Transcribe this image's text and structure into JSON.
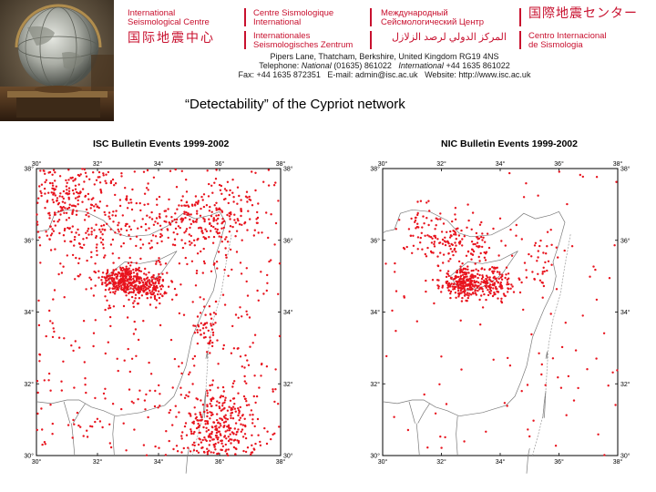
{
  "header": {
    "organization_en": [
      "International",
      "Seismological Centre"
    ],
    "organization_fr": [
      "Centre Sismologique",
      "International"
    ],
    "organization_ru": [
      "Международный",
      "Сейсмологический Центр"
    ],
    "organization_ja": "国際地震センター",
    "organization_zh": "国际地震中心",
    "organization_de": [
      "Internationales",
      "Seismologisches Zentrum"
    ],
    "organization_ar": "المركز الدولي لرصد الزلازل",
    "organization_es": [
      "Centro Internacional",
      "de Sismologia"
    ],
    "accent_color": "#c8102e"
  },
  "address": {
    "line1": "Pipers Lane, Thatcham, Berkshire, United Kingdom RG19 4NS",
    "telephone_label": "Telephone:",
    "national_label": "National",
    "telephone_national": "(01635) 861022",
    "international_label": "International",
    "telephone_international": "+44 1635 861022",
    "fax": "Fax: +44 1635 872351",
    "email": "E-mail: admin@isc.ac.uk",
    "website": "Website: http://www.isc.ac.uk"
  },
  "slide_title": "“Detectability” of the Cypriot network",
  "chart_data": [
    {
      "type": "scatter",
      "title": "ISC Bulletin Events 1999-2002",
      "x_ticks": [
        "30°",
        "32°",
        "34°",
        "36°",
        "38°"
      ],
      "y_ticks": [
        "30°",
        "32°",
        "34°",
        "36°",
        "38°"
      ],
      "xlim": [
        30,
        38
      ],
      "ylim": [
        30,
        38
      ],
      "point_color": "#e8141e",
      "clusters": [
        {
          "lon": 32.8,
          "lat": 34.9,
          "spread_lon": 0.35,
          "spread_lat": 0.2,
          "count": 260
        },
        {
          "lon": 33.6,
          "lat": 34.7,
          "spread_lon": 0.35,
          "spread_lat": 0.2,
          "count": 170
        },
        {
          "lon": 36.0,
          "lat": 30.7,
          "spread_lon": 0.6,
          "spread_lat": 0.6,
          "count": 320
        },
        {
          "lon": 34.8,
          "lat": 36.5,
          "spread_lon": 1.1,
          "spread_lat": 0.45,
          "count": 170
        },
        {
          "lon": 31.5,
          "lat": 36.8,
          "spread_lon": 1.1,
          "spread_lat": 0.8,
          "count": 220
        },
        {
          "lon": 35.6,
          "lat": 33.6,
          "spread_lon": 0.2,
          "spread_lat": 0.35,
          "count": 45
        },
        {
          "lon": 36.0,
          "lat": 36.8,
          "spread_lon": 0.6,
          "spread_lat": 0.7,
          "count": 90
        },
        {
          "lon": 30.8,
          "lat": 37.3,
          "spread_lon": 0.4,
          "spread_lat": 0.5,
          "count": 90
        }
      ],
      "background_events": 420
    },
    {
      "type": "scatter",
      "title": "NIC Bulletin Events 1999-2002",
      "x_ticks": [
        "30°",
        "32°",
        "34°",
        "36°",
        "38°"
      ],
      "y_ticks": [
        "30°",
        "32°",
        "34°",
        "36°",
        "38°"
      ],
      "xlim": [
        30,
        38
      ],
      "ylim": [
        30,
        38
      ],
      "point_color": "#e8141e",
      "clusters": [
        {
          "lon": 32.7,
          "lat": 34.8,
          "spread_lon": 0.35,
          "spread_lat": 0.2,
          "count": 230
        },
        {
          "lon": 33.7,
          "lat": 34.8,
          "spread_lon": 0.4,
          "spread_lat": 0.22,
          "count": 140
        },
        {
          "lon": 32.7,
          "lat": 35.9,
          "spread_lon": 0.7,
          "spread_lat": 0.35,
          "count": 130
        },
        {
          "lon": 31.4,
          "lat": 36.3,
          "spread_lon": 0.4,
          "spread_lat": 0.45,
          "count": 40
        },
        {
          "lon": 35.4,
          "lat": 35.4,
          "spread_lon": 0.35,
          "spread_lat": 0.4,
          "count": 35
        }
      ],
      "background_events": 110
    }
  ]
}
